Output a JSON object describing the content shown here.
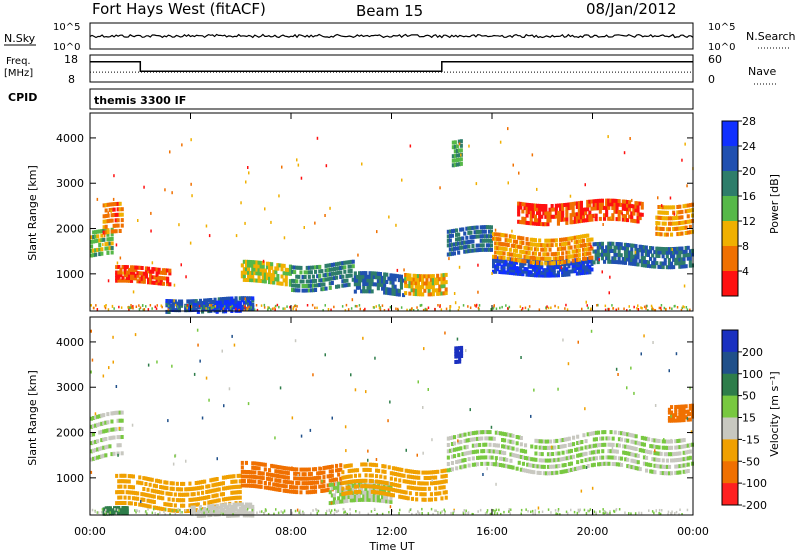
{
  "header": {
    "title": "Fort Hays West (fitACF)",
    "beam": "Beam 15",
    "date": "08/Jan/2012"
  },
  "noise_panel": {
    "left_label": "N.Sky",
    "left_ticks": [
      "10^5",
      "10^0"
    ],
    "right_label": "N.Search",
    "right_ticks": [
      "10^5",
      "10^0"
    ]
  },
  "freq_panel": {
    "label_line1": "Freq.",
    "label_line2": "[MHz]",
    "left_ticks": [
      "18",
      "8"
    ],
    "right_ticks": [
      "60",
      "0"
    ],
    "right_label": "Nave",
    "freq_segments": [
      {
        "start_hour": 0.0,
        "end_hour": 2.0,
        "mhz": 15.5
      },
      {
        "start_hour": 2.0,
        "end_hour": 14.0,
        "mhz": 12.0
      },
      {
        "start_hour": 14.0,
        "end_hour": 24.0,
        "mhz": 15.5
      }
    ],
    "nave_value": 22
  },
  "cpid": {
    "label": "CPID",
    "text": "themis 3300 IF"
  },
  "x_axis": {
    "label": "Time UT",
    "ticks": [
      "00:00",
      "04:00",
      "08:00",
      "12:00",
      "16:00",
      "20:00",
      "00:00"
    ],
    "tick_hours": [
      0,
      4,
      8,
      12,
      16,
      20,
      24
    ]
  },
  "power_panel": {
    "ylabel": "Slant Range [km]",
    "yticks": [
      "1000",
      "2000",
      "3000",
      "4000"
    ],
    "ytick_values": [
      1000,
      2000,
      3000,
      4000
    ],
    "ylim": [
      180,
      4550
    ],
    "colorbar_label": "Power [dB]",
    "colorbar_ticks": [
      "4",
      "8",
      "12",
      "16",
      "20",
      "24",
      "28"
    ],
    "colorbar_colors": [
      "#1030ff",
      "#2050b0",
      "#2e7d6a",
      "#56b848",
      "#f0b000",
      "#f07000",
      "#ff1010"
    ]
  },
  "velocity_panel": {
    "ylabel": "Slant Range [km]",
    "yticks": [
      "1000",
      "2000",
      "3000",
      "4000"
    ],
    "ytick_values": [
      1000,
      2000,
      3000,
      4000
    ],
    "ylim": [
      180,
      4550
    ],
    "colorbar_label": "Velocity [m s⁻¹]",
    "colorbar_ticks": [
      "200",
      "100",
      "50",
      "15",
      "-15",
      "-50",
      "-100",
      "-200"
    ],
    "colorbar_colors": [
      "#1a30c0",
      "#20508a",
      "#2e7d4a",
      "#78c840",
      "#c8c8c0",
      "#f0a000",
      "#f07000",
      "#ff2020"
    ]
  },
  "chart_data": {
    "type": "heatmap",
    "x_range_hours": [
      0,
      24
    ],
    "y_range_km": [
      180,
      4550
    ],
    "power_regions": [
      {
        "hour_start": 0.0,
        "hour_end": 0.9,
        "range_center_km": 1700,
        "range_halfwidth_km": 250,
        "db": 16
      },
      {
        "hour_start": 0.5,
        "hour_end": 1.3,
        "range_center_km": 2200,
        "range_halfwidth_km": 300,
        "db": 8
      },
      {
        "hour_start": 1.0,
        "hour_end": 3.2,
        "range_center_km": 1000,
        "range_halfwidth_km": 150,
        "db": 6
      },
      {
        "hour_start": 3.0,
        "hour_end": 6.5,
        "range_center_km": 350,
        "range_halfwidth_km": 120,
        "db": 24
      },
      {
        "hour_start": 5.0,
        "hour_end": 6.0,
        "range_center_km": 300,
        "range_halfwidth_km": 100,
        "db": 28
      },
      {
        "hour_start": 6.0,
        "hour_end": 8.0,
        "range_center_km": 1050,
        "range_halfwidth_km": 200,
        "db": 14
      },
      {
        "hour_start": 8.0,
        "hour_end": 10.5,
        "range_center_km": 1000,
        "range_halfwidth_km": 250,
        "db": 20
      },
      {
        "hour_start": 10.5,
        "hour_end": 12.5,
        "range_center_km": 800,
        "range_halfwidth_km": 200,
        "db": 22
      },
      {
        "hour_start": 12.5,
        "hour_end": 14.2,
        "range_center_km": 850,
        "range_halfwidth_km": 200,
        "db": 12
      },
      {
        "hour_start": 14.4,
        "hour_end": 14.8,
        "range_center_km": 3700,
        "range_halfwidth_km": 250,
        "db": 18
      },
      {
        "hour_start": 14.2,
        "hour_end": 16.0,
        "range_center_km": 1750,
        "range_halfwidth_km": 250,
        "db": 22
      },
      {
        "hour_start": 16.0,
        "hour_end": 20.0,
        "range_center_km": 1200,
        "range_halfwidth_km": 150,
        "db": 26
      },
      {
        "hour_start": 16.0,
        "hour_end": 20.0,
        "range_center_km": 1600,
        "range_halfwidth_km": 250,
        "db": 10
      },
      {
        "hour_start": 17.0,
        "hour_end": 22.0,
        "range_center_km": 2400,
        "range_halfwidth_km": 200,
        "db": 6
      },
      {
        "hour_start": 20.0,
        "hour_end": 24.0,
        "range_center_km": 1450,
        "range_halfwidth_km": 200,
        "db": 22
      },
      {
        "hour_start": 22.5,
        "hour_end": 24.0,
        "range_center_km": 2300,
        "range_halfwidth_km": 300,
        "db": 10
      }
    ],
    "velocity_regions": [
      {
        "hour_start": 0.0,
        "hour_end": 1.3,
        "range_center_km": 1900,
        "range_halfwidth_km": 450,
        "vel": 0
      },
      {
        "hour_start": 0.5,
        "hour_end": 1.5,
        "range_center_km": 300,
        "range_halfwidth_km": 60,
        "vel": 50
      },
      {
        "hour_start": 1.0,
        "hour_end": 6.0,
        "range_center_km": 700,
        "range_halfwidth_km": 300,
        "vel": -50
      },
      {
        "hour_start": 4.0,
        "hour_end": 6.5,
        "range_center_km": 300,
        "range_halfwidth_km": 120,
        "vel": -15
      },
      {
        "hour_start": 6.0,
        "hour_end": 10.0,
        "range_center_km": 1050,
        "range_halfwidth_km": 250,
        "vel": -100
      },
      {
        "hour_start": 9.5,
        "hour_end": 12.0,
        "range_center_km": 700,
        "range_halfwidth_km": 200,
        "vel": 0
      },
      {
        "hour_start": 10.0,
        "hour_end": 14.2,
        "range_center_km": 950,
        "range_halfwidth_km": 300,
        "vel": -50
      },
      {
        "hour_start": 14.5,
        "hour_end": 14.8,
        "range_center_km": 3750,
        "range_halfwidth_km": 150,
        "vel": 200
      },
      {
        "hour_start": 14.2,
        "hour_end": 24.0,
        "range_center_km": 1600,
        "range_halfwidth_km": 350,
        "vel": 0
      },
      {
        "hour_start": 23.0,
        "hour_end": 24.0,
        "range_center_km": 2500,
        "range_halfwidth_km": 150,
        "vel": -100
      }
    ]
  }
}
